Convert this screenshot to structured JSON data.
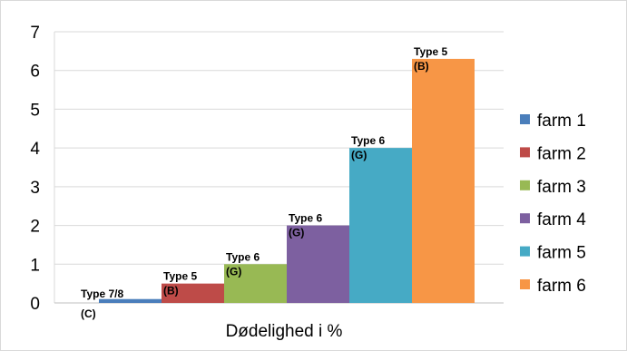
{
  "chart_data": {
    "type": "bar",
    "title": "",
    "xlabel": "Dødelighed i %",
    "ylabel": "",
    "ylim": [
      0,
      7
    ],
    "yticks": [
      "0",
      "1",
      "2",
      "3",
      "4",
      "5",
      "6",
      "7"
    ],
    "grid": "horizontal",
    "legend_position": "right",
    "series": [
      {
        "name": "farm 1",
        "value": 0.1,
        "color": "#4a7ebb",
        "annotation_line1": "Type 7/8",
        "annotation_line2": "(C)"
      },
      {
        "name": "farm 2",
        "value": 0.5,
        "color": "#be4b48",
        "annotation_line1": "Type 5",
        "annotation_line2": "(B)"
      },
      {
        "name": "farm 3",
        "value": 1.0,
        "color": "#98b954",
        "annotation_line1": "Type 6",
        "annotation_line2": "(G)"
      },
      {
        "name": "farm 4",
        "value": 2.0,
        "color": "#7d60a0",
        "annotation_line1": "Type 6",
        "annotation_line2": "(G)"
      },
      {
        "name": "farm 5",
        "value": 4.0,
        "color": "#46aac5",
        "annotation_line1": "Type 6",
        "annotation_line2": "(G)"
      },
      {
        "name": "farm 6",
        "value": 6.3,
        "color": "#f79646",
        "annotation_line1": "Type 5",
        "annotation_line2": "(B)"
      }
    ]
  }
}
